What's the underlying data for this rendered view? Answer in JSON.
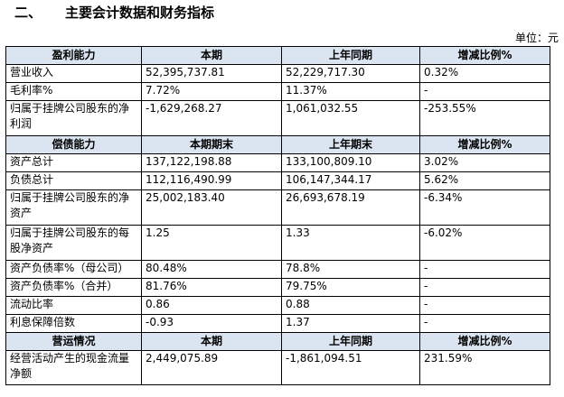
{
  "heading": {
    "number": "二、",
    "title": "主要会计数据和财务指标"
  },
  "unit": "单位：元",
  "sections": [
    {
      "header": [
        "盈利能力",
        "本期",
        "上年同期",
        "增减比例%"
      ],
      "rows": [
        [
          "营业收入",
          "52,395,737.81",
          "52,229,717.30",
          "0.32%"
        ],
        [
          "毛利率%",
          "7.72%",
          "11.37%",
          "-"
        ],
        [
          "归属于挂牌公司股东的净利润",
          "-1,629,268.27",
          "1,061,032.55",
          "-253.55%"
        ]
      ]
    },
    {
      "header": [
        "偿债能力",
        "本期期末",
        "上年期末",
        "增减比例%"
      ],
      "rows": [
        [
          "资产总计",
          "137,122,198.88",
          "133,100,809.10",
          "3.02%"
        ],
        [
          "负债总计",
          "112,116,490.99",
          "106,147,344.17",
          "5.62%"
        ],
        [
          "归属于挂牌公司股东的净资产",
          "25,002,183.40",
          "26,693,678.19",
          "-6.34%"
        ],
        [
          "归属于挂牌公司股东的每股净资产",
          "1.25",
          "1.33",
          "-6.02%"
        ],
        [
          "资产负债率%（母公司）",
          "80.48%",
          "78.8%",
          "-"
        ],
        [
          "资产负债率%（合并）",
          "81.76%",
          "79.75%",
          "-"
        ],
        [
          "流动比率",
          "0.86",
          "0.88",
          "-"
        ],
        [
          "利息保障倍数",
          "-0.93",
          "1.37",
          "-"
        ]
      ]
    },
    {
      "header": [
        "营运情况",
        "本期",
        "上年同期",
        "增减比例%"
      ],
      "rows": [
        [
          "经营活动产生的现金流量净额",
          "2,449,075.89",
          "-1,861,094.51",
          "231.59%"
        ]
      ]
    }
  ]
}
